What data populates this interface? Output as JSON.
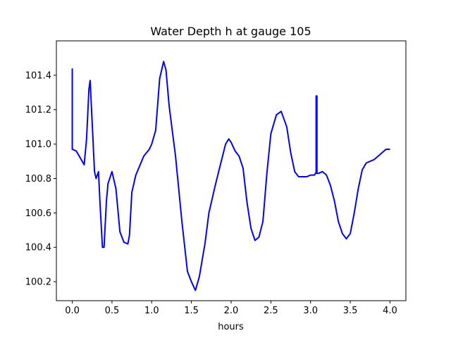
{
  "chart_data": {
    "type": "line",
    "title": "Water Depth h at gauge 105",
    "xlabel": "hours",
    "ylabel": "",
    "xlim": [
      -0.2,
      4.2
    ],
    "ylim": [
      100.09,
      101.6
    ],
    "grid": false,
    "x_ticks": [
      0.0,
      0.5,
      1.0,
      1.5,
      2.0,
      2.5,
      3.0,
      3.5,
      4.0
    ],
    "x_tick_labels": [
      "0.0",
      "0.5",
      "1.0",
      "1.5",
      "2.0",
      "2.5",
      "3.0",
      "3.5",
      "4.0"
    ],
    "y_ticks": [
      100.2,
      100.4,
      100.6,
      100.8,
      101.0,
      101.2,
      101.4
    ],
    "y_tick_labels": [
      "100.2",
      "100.4",
      "100.6",
      "100.8",
      "101.0",
      "101.2",
      "101.4"
    ],
    "series": [
      {
        "color": "#0000ff",
        "x": [
          0.0,
          0.0,
          0.0,
          0.05,
          0.1,
          0.15,
          0.18,
          0.21,
          0.225,
          0.25,
          0.28,
          0.3,
          0.33,
          0.35,
          0.38,
          0.4,
          0.43,
          0.45,
          0.5,
          0.55,
          0.6,
          0.65,
          0.7,
          0.72,
          0.75,
          0.8,
          0.9,
          0.97,
          1.0,
          1.05,
          1.1,
          1.15,
          1.18,
          1.22,
          1.3,
          1.38,
          1.45,
          1.5,
          1.55,
          1.6,
          1.67,
          1.72,
          1.8,
          1.87,
          1.93,
          1.97,
          2.0,
          2.05,
          2.1,
          2.15,
          2.2,
          2.25,
          2.3,
          2.35,
          2.4,
          2.45,
          2.5,
          2.57,
          2.63,
          2.7,
          2.75,
          2.8,
          2.85,
          2.9,
          2.95,
          3.0,
          3.05,
          3.06,
          3.07,
          3.07,
          3.08,
          3.08,
          3.1,
          3.15,
          3.2,
          3.25,
          3.3,
          3.35,
          3.4,
          3.45,
          3.5,
          3.55,
          3.6,
          3.65,
          3.7,
          3.75,
          3.8,
          3.85,
          3.9,
          3.95,
          4.0
        ],
        "y": [
          101.44,
          100.98,
          100.97,
          100.96,
          100.92,
          100.88,
          101.03,
          101.32,
          101.37,
          101.13,
          100.84,
          100.8,
          100.84,
          100.65,
          100.4,
          100.4,
          100.67,
          100.77,
          100.84,
          100.74,
          100.49,
          100.43,
          100.42,
          100.47,
          100.72,
          100.82,
          100.93,
          100.97,
          101.0,
          101.08,
          101.38,
          101.48,
          101.43,
          101.22,
          100.93,
          100.55,
          100.26,
          100.2,
          100.15,
          100.23,
          100.42,
          100.6,
          100.76,
          100.89,
          101.0,
          101.03,
          101.01,
          100.96,
          100.93,
          100.86,
          100.66,
          100.51,
          100.44,
          100.46,
          100.55,
          100.83,
          101.06,
          101.17,
          101.19,
          101.1,
          100.95,
          100.84,
          100.81,
          100.81,
          100.81,
          100.82,
          100.82,
          100.83,
          100.83,
          101.28,
          101.28,
          100.83,
          100.83,
          100.84,
          100.82,
          100.76,
          100.67,
          100.55,
          100.48,
          100.45,
          100.48,
          100.6,
          100.74,
          100.85,
          100.89,
          100.9,
          100.91,
          100.93,
          100.95,
          100.97,
          100.97
        ]
      }
    ]
  }
}
